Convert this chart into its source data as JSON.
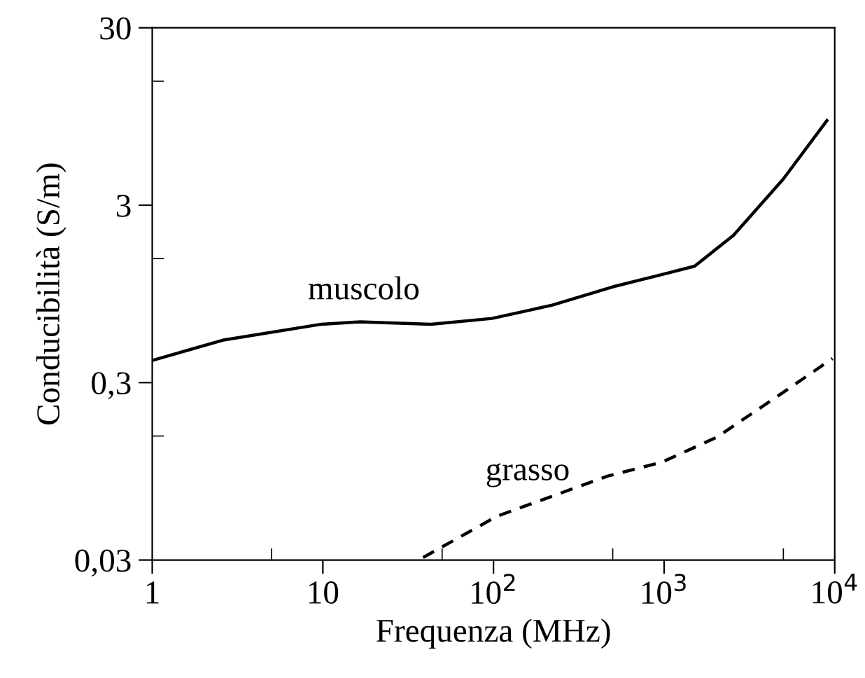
{
  "chart_data": {
    "type": "line",
    "xlabel": "Frequenza (MHz)",
    "ylabel": "Conducibilità (S/m)",
    "log": "xy",
    "grid": false,
    "xlim": [
      1,
      10000
    ],
    "ylim": [
      0.03,
      30
    ],
    "xticks": [
      1,
      10,
      {
        "value": 100,
        "label": "10$^{2}$"
      },
      {
        "value": 1000,
        "label": "10$^{3}$"
      },
      {
        "value": 10000,
        "label": "10$^{4}$"
      },
      {
        "value": 5,
        "label": null
      },
      {
        "value": 50,
        "label": null
      },
      {
        "value": 500,
        "label": null
      },
      {
        "value": 5000,
        "label": null
      }
    ],
    "yticks": [
      {
        "value": 0.03,
        "label": "0,03"
      },
      {
        "value": 0.3,
        "label": "0,3"
      },
      3,
      30,
      {
        "value": 0.15,
        "label": null
      },
      {
        "value": 1.5,
        "label": null
      },
      {
        "value": 15,
        "label": null
      }
    ],
    "series": [
      {
        "name": "muscolo",
        "color": "#000000",
        "line_style": "solid",
        "x": [
          1,
          2.58,
          9.8,
          16.5,
          43,
          98,
          221,
          500,
          975,
          1510,
          2550,
          4980,
          9000
        ],
        "values": [
          0.4,
          0.52,
          0.64,
          0.66,
          0.64,
          0.69,
          0.82,
          1.04,
          1.22,
          1.36,
          2.03,
          4.2,
          9.0
        ]
      },
      {
        "name": "grasso",
        "color": "#000000",
        "line_style": "dashed",
        "x": [
          38.7,
          105,
          464,
          975,
          2045,
          4980,
          9700
        ],
        "values": [
          0.031,
          0.053,
          0.089,
          0.107,
          0.148,
          0.264,
          0.41
        ]
      }
    ]
  }
}
